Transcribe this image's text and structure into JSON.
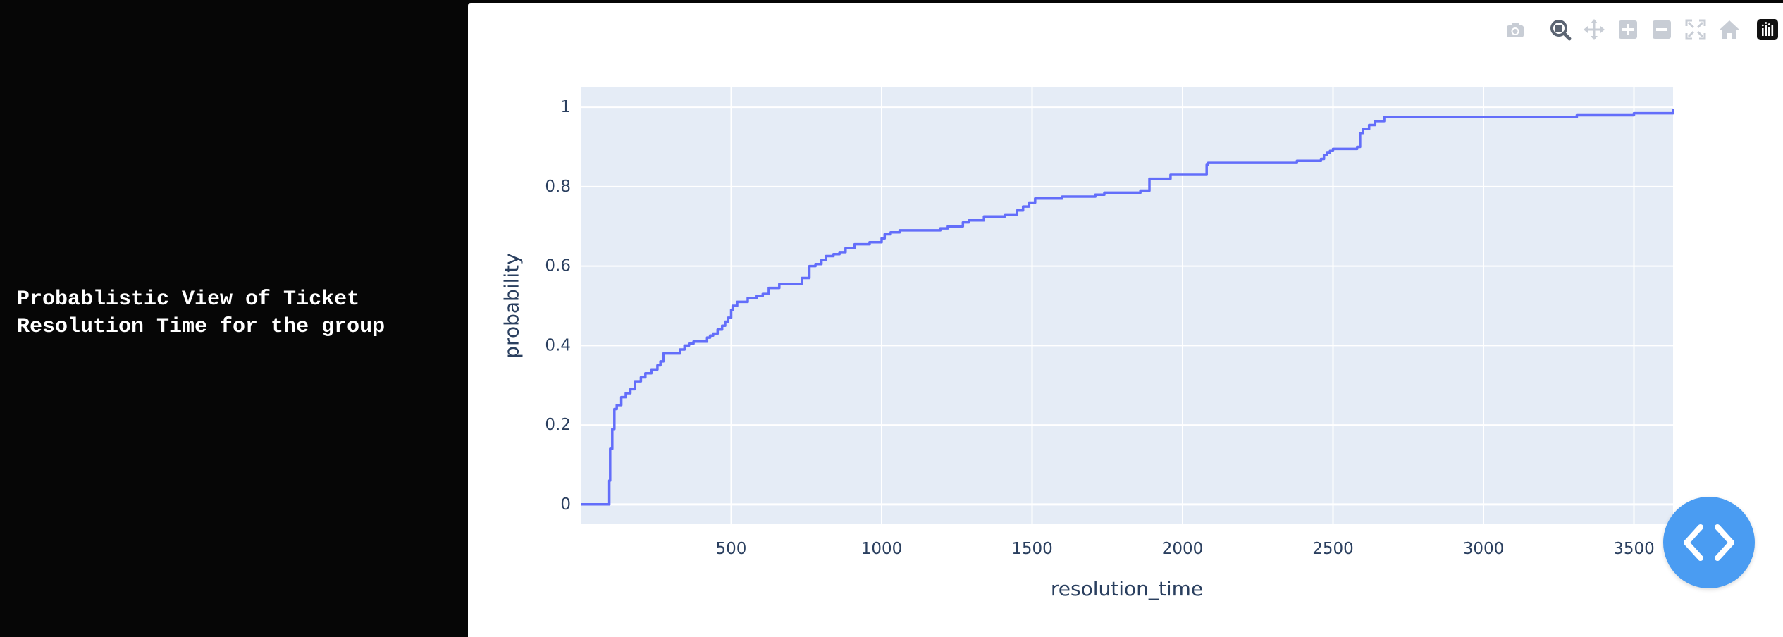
{
  "left_panel": {
    "title_line1": "Probablistic View of Ticket",
    "title_line2": "Resolution Time for the group"
  },
  "modebar": {
    "buttons": [
      "camera-icon",
      "zoom-icon",
      "pan-icon",
      "zoom-in-icon",
      "zoom-out-icon",
      "autoscale-icon",
      "reset-axes-icon",
      "plotly-logo-icon"
    ]
  },
  "colors": {
    "plot_bg": "#e5ecf6",
    "line": "#636efa",
    "grid": "#ffffff",
    "text": "#2a3f5f",
    "fab": "#4a9cf2"
  },
  "chart_data": {
    "type": "line",
    "line_shape": "step",
    "xlabel": "resolution_time",
    "ylabel": "probability",
    "xlim": [
      0,
      3630
    ],
    "ylim": [
      -0.05,
      1.05
    ],
    "xticks": [
      500,
      1000,
      1500,
      2000,
      2500,
      3000,
      3500
    ],
    "yticks": [
      0,
      0.2,
      0.4,
      0.6,
      0.8,
      1
    ],
    "ytick_labels": [
      "0",
      "0.2",
      "0.4",
      "0.6",
      "0.8",
      "1"
    ],
    "grid": true,
    "series": [
      {
        "x": [
          0,
          95,
          98,
          105,
          112,
          120,
          135,
          150,
          165,
          180,
          200,
          215,
          235,
          255,
          265,
          275,
          330,
          345,
          360,
          375,
          420,
          430,
          440,
          455,
          470,
          480,
          490,
          500,
          505,
          520,
          555,
          585,
          605,
          625,
          660,
          735,
          760,
          780,
          800,
          815,
          840,
          860,
          880,
          910,
          960,
          1000,
          1010,
          1030,
          1060,
          1195,
          1220,
          1270,
          1290,
          1340,
          1410,
          1450,
          1470,
          1490,
          1510,
          1600,
          1710,
          1740,
          1860,
          1890,
          1960,
          2080,
          2085,
          2200,
          2300,
          2380,
          2460,
          2470,
          2480,
          2490,
          2500,
          2580,
          2590,
          2600,
          2620,
          2640,
          2670,
          2690,
          2800,
          3000,
          3200,
          3310,
          3500,
          3630
        ],
        "y": [
          0.0,
          0.06,
          0.14,
          0.19,
          0.24,
          0.25,
          0.27,
          0.28,
          0.29,
          0.31,
          0.32,
          0.33,
          0.34,
          0.35,
          0.36,
          0.38,
          0.39,
          0.4,
          0.405,
          0.41,
          0.42,
          0.425,
          0.43,
          0.44,
          0.45,
          0.46,
          0.47,
          0.49,
          0.5,
          0.51,
          0.52,
          0.525,
          0.53,
          0.545,
          0.555,
          0.57,
          0.6,
          0.605,
          0.615,
          0.625,
          0.63,
          0.635,
          0.645,
          0.655,
          0.66,
          0.67,
          0.68,
          0.685,
          0.69,
          0.695,
          0.7,
          0.71,
          0.715,
          0.725,
          0.73,
          0.74,
          0.75,
          0.76,
          0.77,
          0.775,
          0.78,
          0.785,
          0.79,
          0.82,
          0.83,
          0.855,
          0.86,
          0.86,
          0.86,
          0.865,
          0.87,
          0.88,
          0.885,
          0.89,
          0.895,
          0.9,
          0.935,
          0.945,
          0.955,
          0.965,
          0.975,
          0.975,
          0.975,
          0.975,
          0.975,
          0.98,
          0.985,
          0.995
        ]
      }
    ]
  }
}
